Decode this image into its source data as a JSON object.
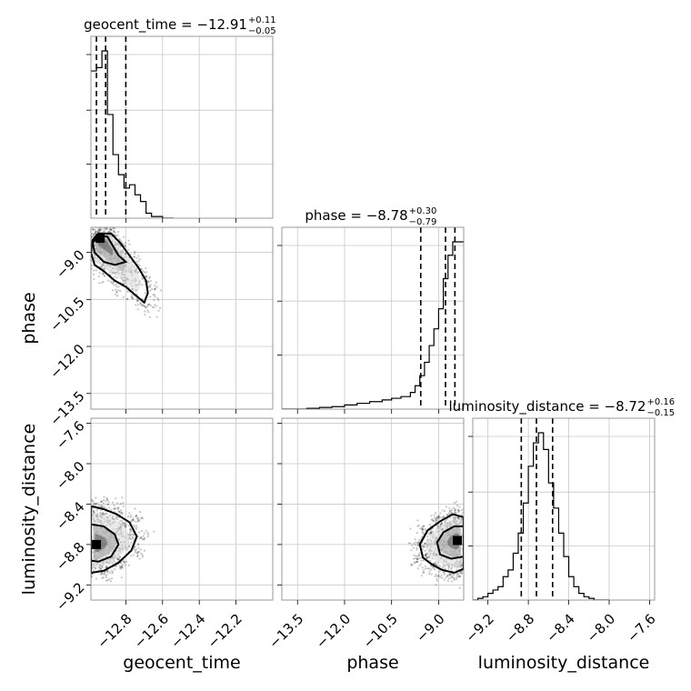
{
  "chart_data": {
    "type": "corner",
    "parameters": [
      "geocent_time",
      "phase",
      "luminosity_distance"
    ],
    "axes": {
      "geocent_time": {
        "range": [
          -12.99,
          -12.0
        ],
        "ticks": [
          -12.8,
          -12.6,
          -12.4,
          -12.2
        ],
        "tick_labels": [
          "−12.8",
          "−12.6",
          "−12.4",
          "−12.2"
        ],
        "label": "geocent_time"
      },
      "phase": {
        "range": [
          -14.0,
          -8.2
        ],
        "x_ticks": [
          -13.5,
          -12.0,
          -10.5,
          -9.0
        ],
        "x_tick_labels": [
          "−13.5",
          "−12.0",
          "−10.5",
          "−9.0"
        ],
        "y_ticks": [
          -9.0,
          -10.5,
          -12.0,
          -13.5
        ],
        "y_tick_labels": [
          "−9.0",
          "−10.5",
          "−12.0",
          "−13.5"
        ],
        "label": "phase"
      },
      "luminosity_distance": {
        "range": [
          -9.35,
          -7.55
        ],
        "x_ticks": [
          -9.2,
          -8.8,
          -8.4,
          -8.0,
          -7.6
        ],
        "x_tick_labels": [
          "−9.2",
          "−8.8",
          "−8.4",
          "−8.0",
          "−7.6"
        ],
        "y_ticks": [
          -7.6,
          -8.0,
          -8.4,
          -8.8,
          -9.2
        ],
        "y_tick_labels": [
          "−7.6",
          "−8.0",
          "−8.4",
          "−8.8",
          "−9.2"
        ],
        "label": "luminosity_distance"
      }
    },
    "titles": [
      {
        "name": "geocent_time",
        "median": "−12.91",
        "plus": "+0.11",
        "minus": "−0.05"
      },
      {
        "name": "phase",
        "median": "−8.78",
        "plus": "+0.30",
        "minus": "−0.79"
      },
      {
        "name": "luminosity_distance",
        "median": "−8.72",
        "plus": "+0.16",
        "minus": "−0.15"
      }
    ],
    "histograms": {
      "geocent_time": {
        "bin_edges": [
          -12.99,
          -12.96,
          -12.93,
          -12.9,
          -12.87,
          -12.84,
          -12.81,
          -12.78,
          -12.75,
          -12.72,
          -12.69,
          -12.66,
          -12.63,
          -12.6,
          -12.57,
          -12.54
        ],
        "counts": [
          0.88,
          0.9,
          1.0,
          0.62,
          0.38,
          0.26,
          0.18,
          0.2,
          0.14,
          0.1,
          0.03,
          0.01,
          0.01,
          0.0,
          0.0
        ],
        "quantiles": [
          -12.96,
          -12.91,
          -12.8
        ]
      },
      "phase": {
        "bin_edges": [
          -14.0,
          -13.6,
          -13.2,
          -12.8,
          -12.4,
          -12.0,
          -11.6,
          -11.2,
          -10.8,
          -10.5,
          -10.2,
          -9.9,
          -9.75,
          -9.6,
          -9.45,
          -9.3,
          -9.15,
          -9.0,
          -8.85,
          -8.7,
          -8.55,
          -8.4,
          -8.2
        ],
        "counts": [
          0.0,
          0.0,
          0.005,
          0.01,
          0.015,
          0.025,
          0.035,
          0.045,
          0.055,
          0.065,
          0.075,
          0.1,
          0.14,
          0.2,
          0.28,
          0.38,
          0.48,
          0.6,
          0.78,
          0.92,
          1.0,
          1.0
        ],
        "quantiles": [
          -9.57,
          -8.78,
          -8.48
        ]
      },
      "luminosity_distance": {
        "bin_edges": [
          -9.35,
          -9.3,
          -9.25,
          -9.2,
          -9.15,
          -9.1,
          -9.05,
          -9.0,
          -8.95,
          -8.9,
          -8.85,
          -8.8,
          -8.75,
          -8.7,
          -8.65,
          -8.6,
          -8.55,
          -8.5,
          -8.45,
          -8.4,
          -8.35,
          -8.3,
          -8.25,
          -8.2,
          -8.15,
          -8.1,
          -8.05,
          -8.0
        ],
        "counts": [
          0.0,
          0.01,
          0.02,
          0.04,
          0.06,
          0.08,
          0.14,
          0.18,
          0.28,
          0.4,
          0.58,
          0.8,
          0.94,
          1.0,
          0.9,
          0.7,
          0.55,
          0.4,
          0.26,
          0.14,
          0.08,
          0.04,
          0.02,
          0.01,
          0.0,
          0.0,
          0.0
        ],
        "quantiles": [
          -8.87,
          -8.72,
          -8.56
        ]
      }
    },
    "pairs": [
      {
        "x": "geocent_time",
        "y": "phase",
        "density_center": [
          -12.94,
          -8.55
        ],
        "contours": [
          [
            [
              -12.95,
              -8.4
            ],
            [
              -12.88,
              -8.4
            ],
            [
              -12.83,
              -8.7
            ],
            [
              -12.78,
              -9.1
            ],
            [
              -12.73,
              -9.5
            ],
            [
              -12.69,
              -9.9
            ],
            [
              -12.68,
              -10.3
            ],
            [
              -12.7,
              -10.6
            ],
            [
              -12.74,
              -10.4
            ],
            [
              -12.8,
              -10.1
            ],
            [
              -12.86,
              -9.9
            ],
            [
              -12.92,
              -9.6
            ],
            [
              -12.97,
              -9.4
            ],
            [
              -12.99,
              -9.0
            ],
            [
              -12.98,
              -8.6
            ]
          ],
          [
            [
              -12.95,
              -8.45
            ],
            [
              -12.9,
              -8.5
            ],
            [
              -12.87,
              -8.8
            ],
            [
              -12.84,
              -9.1
            ],
            [
              -12.8,
              -9.3
            ],
            [
              -12.86,
              -9.4
            ],
            [
              -12.92,
              -9.3
            ],
            [
              -12.97,
              -9.0
            ],
            [
              -12.98,
              -8.7
            ]
          ]
        ]
      },
      {
        "x": "geocent_time",
        "y": "luminosity_distance",
        "density_center": [
          -12.96,
          -8.8
        ],
        "contours": [
          [
            [
              -12.99,
              -8.42
            ],
            [
              -12.92,
              -8.45
            ],
            [
              -12.85,
              -8.5
            ],
            [
              -12.78,
              -8.58
            ],
            [
              -12.74,
              -8.72
            ],
            [
              -12.77,
              -8.86
            ],
            [
              -12.84,
              -8.98
            ],
            [
              -12.92,
              -9.06
            ],
            [
              -12.99,
              -9.08
            ]
          ],
          [
            [
              -12.99,
              -8.6
            ],
            [
              -12.92,
              -8.62
            ],
            [
              -12.86,
              -8.7
            ],
            [
              -12.84,
              -8.8
            ],
            [
              -12.88,
              -8.92
            ],
            [
              -12.95,
              -8.97
            ],
            [
              -12.99,
              -8.96
            ]
          ]
        ]
      },
      {
        "x": "phase",
        "y": "luminosity_distance",
        "density_center": [
          -8.4,
          -8.76
        ],
        "contours": [
          [
            [
              -8.2,
              -8.53
            ],
            [
              -8.55,
              -8.5
            ],
            [
              -8.95,
              -8.57
            ],
            [
              -9.35,
              -8.66
            ],
            [
              -9.6,
              -8.8
            ],
            [
              -9.5,
              -8.93
            ],
            [
              -9.2,
              -9.0
            ],
            [
              -8.9,
              -9.05
            ],
            [
              -8.5,
              -9.08
            ],
            [
              -8.2,
              -9.04
            ]
          ],
          [
            [
              -8.2,
              -8.62
            ],
            [
              -8.5,
              -8.62
            ],
            [
              -8.85,
              -8.68
            ],
            [
              -9.05,
              -8.78
            ],
            [
              -8.95,
              -8.9
            ],
            [
              -8.6,
              -8.94
            ],
            [
              -8.2,
              -8.92
            ]
          ]
        ]
      }
    ]
  }
}
